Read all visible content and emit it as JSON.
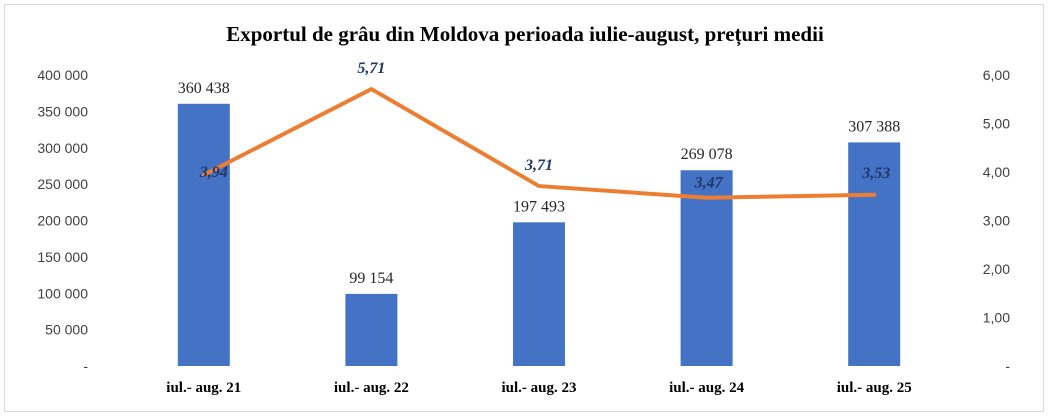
{
  "chart_data": {
    "type": "bar+line",
    "title": "Exportul de grâu din Moldova perioada iulie-august, prețuri medii",
    "categories": [
      "iul.- aug. 21",
      "iul.- aug. 22",
      "iul.- aug. 23",
      "iul.- aug. 24",
      "iul.- aug. 25"
    ],
    "series": [
      {
        "type": "bar",
        "axis": "left",
        "values": [
          360438,
          99154,
          197493,
          269078,
          307388
        ],
        "labels": [
          "360 438",
          "99 154",
          "197 493",
          "269 078",
          "307 388"
        ],
        "color": "#4472c4"
      },
      {
        "type": "line",
        "axis": "right",
        "values": [
          3.94,
          5.71,
          3.71,
          3.47,
          3.53
        ],
        "labels": [
          "3,94",
          "5,71",
          "3,71",
          "3,47",
          "3,53"
        ],
        "color": "#ed7d31",
        "label_color": "#1f3864"
      }
    ],
    "y_left": {
      "range": [
        0,
        400000
      ],
      "ticks": [
        0,
        50000,
        100000,
        150000,
        200000,
        250000,
        300000,
        350000,
        400000
      ],
      "tick_labels": [
        "-",
        "50 000",
        "100 000",
        "150 000",
        "200 000",
        "250 000",
        "300 000",
        "350 000",
        "400 000"
      ]
    },
    "y_right": {
      "range": [
        0,
        6
      ],
      "ticks": [
        0,
        1,
        2,
        3,
        4,
        5,
        6
      ],
      "tick_labels": [
        "-",
        "1,00",
        "2,00",
        "3,00",
        "4,00",
        "5,00",
        "6,00"
      ]
    },
    "grid": false,
    "legend": "none"
  }
}
